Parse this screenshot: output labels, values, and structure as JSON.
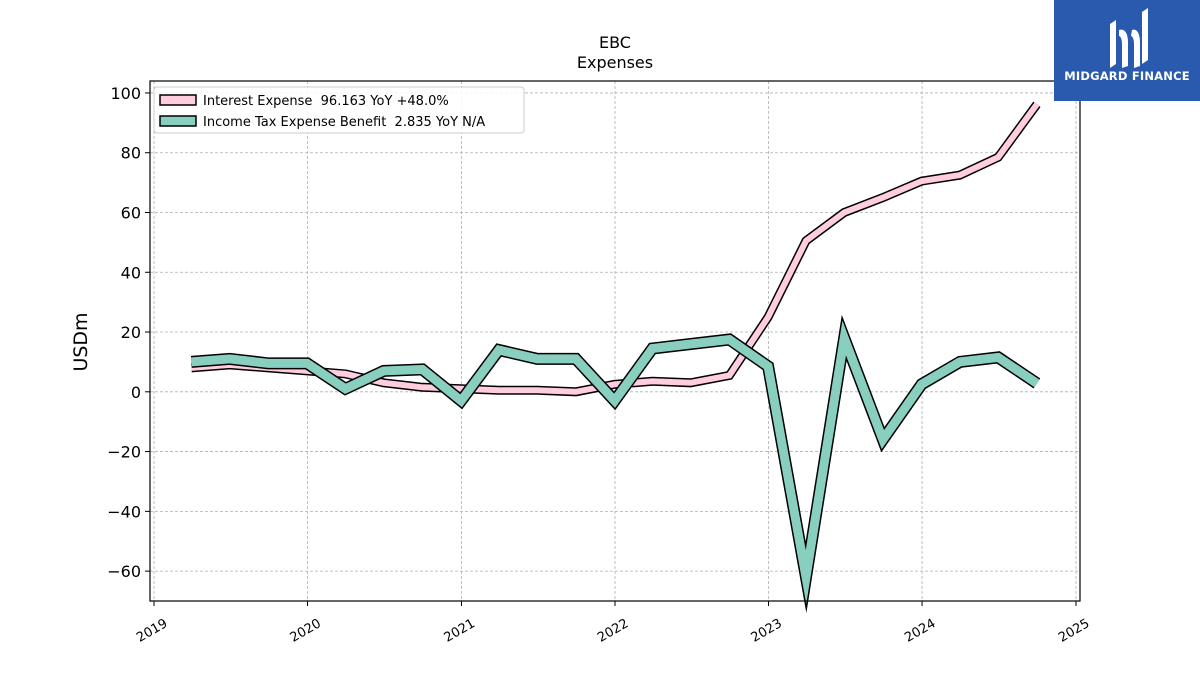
{
  "brand": {
    "name": "MIDGARD FINANCE",
    "color": "#2a5aad",
    "icon": "midgard-logo-icon"
  },
  "chart_data": {
    "type": "line",
    "title": "EBC",
    "subtitle": "Expenses",
    "xlabel": "",
    "ylabel": "USDm",
    "xlim": [
      "2019-01-01",
      "2025-01-01"
    ],
    "ylim": [
      -70,
      104
    ],
    "xticks": [
      "2019",
      "2020",
      "2021",
      "2022",
      "2023",
      "2024",
      "2025"
    ],
    "yticks": [
      -60,
      -40,
      -20,
      0,
      20,
      40,
      60,
      80,
      100
    ],
    "ytick_labels": [
      "−60",
      "−40",
      "−20",
      "0",
      "20",
      "40",
      "60",
      "80",
      "100"
    ],
    "grid": true,
    "legend_position": "top-left",
    "x": [
      "2019-03-31",
      "2019-06-30",
      "2019-09-30",
      "2019-12-31",
      "2020-03-31",
      "2020-06-30",
      "2020-09-30",
      "2020-12-31",
      "2021-03-31",
      "2021-06-30",
      "2021-09-30",
      "2021-12-31",
      "2022-03-31",
      "2022-06-30",
      "2022-09-30",
      "2022-12-31",
      "2023-03-31",
      "2023-06-30",
      "2023-09-30",
      "2023-12-31",
      "2024-03-31",
      "2024-06-30",
      "2024-09-30"
    ],
    "series": [
      {
        "name": "Interest Expense",
        "legend_label": "Interest Expense  96.163 YoY +48.0%",
        "color": "#ffcce0",
        "values": [
          8.0,
          9.0,
          8.0,
          7.0,
          6.0,
          3.0,
          1.5,
          1.0,
          0.5,
          0.5,
          0.0,
          2.5,
          3.5,
          3.0,
          5.5,
          25.0,
          50.5,
          60.0,
          65.0,
          70.5,
          72.5,
          78.5,
          96.2
        ]
      },
      {
        "name": "Income Tax Expense Benefit",
        "legend_label": "Income Tax Expense Benefit  2.835 YoY N/A",
        "color": "#88cfc0",
        "values": [
          10.0,
          11.0,
          9.5,
          9.5,
          1.0,
          7.0,
          7.5,
          -3.0,
          14.0,
          11.0,
          11.0,
          -3.0,
          14.5,
          16.0,
          17.5,
          8.5,
          -62.0,
          18.0,
          -16.0,
          2.5,
          10.0,
          11.5,
          2.8
        ]
      }
    ]
  }
}
